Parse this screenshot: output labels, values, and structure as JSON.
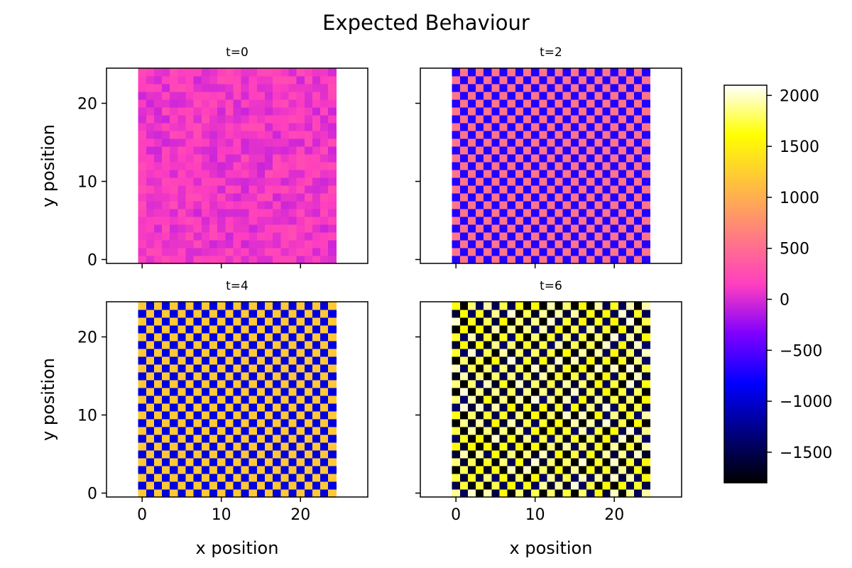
{
  "figure": {
    "title": "Expected Behaviour"
  },
  "colors": {
    "colormap": "gnuplot2",
    "colormap_stops": [
      "#000000",
      "#00007f",
      "#0000ff",
      "#7f00ff",
      "#ff3fbf",
      "#ff7f7f",
      "#ffbf3f",
      "#ffff00",
      "#ffffff"
    ]
  },
  "chart_data": {
    "type": "heatmap",
    "colorbar": {
      "range": [
        -1800,
        2100
      ],
      "ticks": [
        -1500,
        -1000,
        -500,
        0,
        500,
        1000,
        1500,
        2000
      ],
      "tick_labels": [
        "−1500",
        "−1000",
        "−500",
        "0",
        "500",
        "1000",
        "1500",
        "2000"
      ]
    },
    "grid_size": [
      25,
      25
    ],
    "panels": [
      {
        "id": "t0",
        "title": "t=0",
        "ylabel": "y position",
        "xlabel": "",
        "xticks": [
          0,
          10,
          20
        ],
        "xtick_labels_visible": false,
        "yticks": [
          0,
          10,
          20
        ],
        "ytick_labels_visible": true,
        "pattern": "noise",
        "center_value": 100,
        "spread": 150
      },
      {
        "id": "t2",
        "title": "t=2",
        "ylabel": "",
        "xlabel": "",
        "xticks": [
          0,
          10,
          20
        ],
        "xtick_labels_visible": false,
        "yticks": [
          0,
          10,
          20
        ],
        "ytick_labels_visible": false,
        "pattern": "checkerboard",
        "even_value": -700,
        "odd_value": 550
      },
      {
        "id": "t4",
        "title": "t=4",
        "ylabel": "y position",
        "xlabel": "x position",
        "xticks": [
          0,
          10,
          20
        ],
        "xtick_labels_visible": true,
        "yticks": [
          0,
          10,
          20
        ],
        "ytick_labels_visible": true,
        "pattern": "checkerboard",
        "even_value": 1200,
        "odd_value": -950
      },
      {
        "id": "t6",
        "title": "t=6",
        "ylabel": "",
        "xlabel": "x position",
        "xticks": [
          0,
          10,
          20
        ],
        "xtick_labels_visible": true,
        "yticks": [
          0,
          10,
          20
        ],
        "ytick_labels_visible": false,
        "pattern": "checkerboard_noisy",
        "even_value": 1800,
        "odd_value": -1650,
        "spread": 250
      }
    ]
  }
}
